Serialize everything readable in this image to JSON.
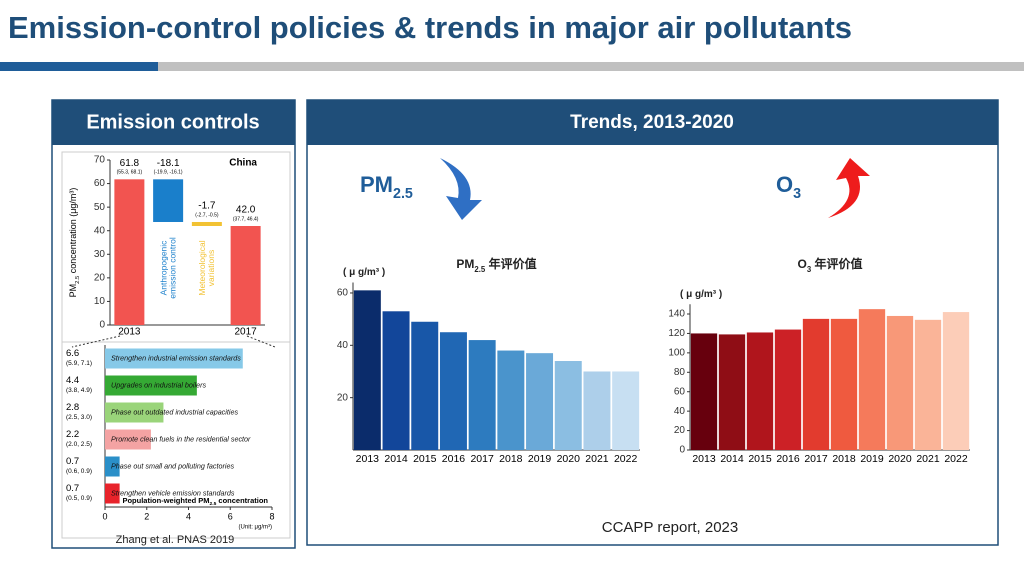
{
  "title": "Emission-control policies & trends in major air pollutants",
  "left_header": "Emission controls",
  "right_header": "Trends, 2013-2020",
  "left_source": "Zhang et al. PNAS 2019",
  "right_source": "CCAPP report, 2023",
  "pm_label": {
    "main": "PM",
    "sub": "2.5"
  },
  "o3_label": {
    "main": "O",
    "sub": "3"
  },
  "charts": [
    {
      "type": "waterfall",
      "region": "China",
      "y_label": {
        "main": "PM",
        "sub": "2.5",
        "rest": " concentration (μg/m³)"
      },
      "categories": [
        "2013",
        [
          "Anthropogenic",
          "emission control"
        ],
        [
          "Meteorological",
          "variations"
        ],
        "2017"
      ],
      "values": [
        61.8,
        -18.1,
        -1.7,
        42.0
      ],
      "value_labels": [
        "61.8",
        "-18.1",
        "-1.7",
        "42.0"
      ],
      "intervals": [
        "(55.3, 68.1)",
        "(-19.9, -16.1)",
        "(-2.7, -0.5)",
        "(37.7, 46.4)"
      ],
      "colors": [
        "#f25450",
        "#1a7fcb",
        "#f2c233",
        "#f25450"
      ],
      "ylim": [
        0,
        70
      ],
      "yticks": [
        0,
        10,
        20,
        30,
        40,
        50,
        60,
        70
      ]
    },
    {
      "type": "hbar",
      "categories": [
        "Strengthen industrial emission standards",
        "Upgrades on industrial boilers",
        "Phase out outdated industrial capacities",
        "Promote clean fuels in the residential sector",
        "Phase out small and polluting factories",
        "Strengthen vehicle emission standards"
      ],
      "values": [
        6.6,
        4.4,
        2.8,
        2.2,
        0.7,
        0.7
      ],
      "intervals": [
        "(5.9, 7.1)",
        "(3.8, 4.9)",
        "(2.5, 3.0)",
        "(2.0, 2.5)",
        "(0.6, 0.9)",
        "(0.5, 0.9)"
      ],
      "colors": [
        "#86c9e8",
        "#35a934",
        "#9ad47a",
        "#f4a3a3",
        "#2a8fc8",
        "#e8232b"
      ],
      "xlim": [
        0,
        8
      ],
      "xticks": [
        0,
        2,
        4,
        6,
        8
      ],
      "x_label": {
        "main": "Population-weighted PM",
        "sub": "2.5",
        "rest": " concentration"
      },
      "unit": "(Unit: μg/m³)"
    },
    {
      "type": "bar",
      "title": {
        "main": "PM",
        "sub": "2.5",
        "rest": " 年评价值"
      },
      "unit": "( μ g/m³ )",
      "categories": [
        "2013",
        "2014",
        "2015",
        "2016",
        "2017",
        "2018",
        "2019",
        "2020",
        "2021",
        "2022"
      ],
      "values": [
        61,
        53,
        49,
        45,
        42,
        38,
        37,
        34,
        30,
        30
      ],
      "colors": [
        "#0b2c6b",
        "#12469a",
        "#1857a8",
        "#2067b4",
        "#2d7bbf",
        "#4a94cc",
        "#6aa9d8",
        "#8bbee2",
        "#adcfea",
        "#c7dff2"
      ],
      "ylim": [
        0,
        64
      ],
      "yticks": [
        20,
        40,
        60
      ]
    },
    {
      "type": "bar",
      "title": {
        "main": "O",
        "sub": "3",
        "rest": " 年评价值"
      },
      "unit": "( μ g/m³ )",
      "categories": [
        "2013",
        "2014",
        "2015",
        "2016",
        "2017",
        "2018",
        "2019",
        "2020",
        "2021",
        "2022"
      ],
      "values": [
        120,
        119,
        121,
        124,
        135,
        135,
        145,
        138,
        134,
        142
      ],
      "colors": [
        "#67000d",
        "#8f0d15",
        "#b0151c",
        "#cc2126",
        "#e23b2e",
        "#ef5a3f",
        "#f57a5b",
        "#f89878",
        "#fab498",
        "#fccdb8"
      ],
      "ylim": [
        0,
        150
      ],
      "yticks": [
        0,
        20,
        40,
        60,
        80,
        100,
        120,
        140
      ]
    }
  ]
}
